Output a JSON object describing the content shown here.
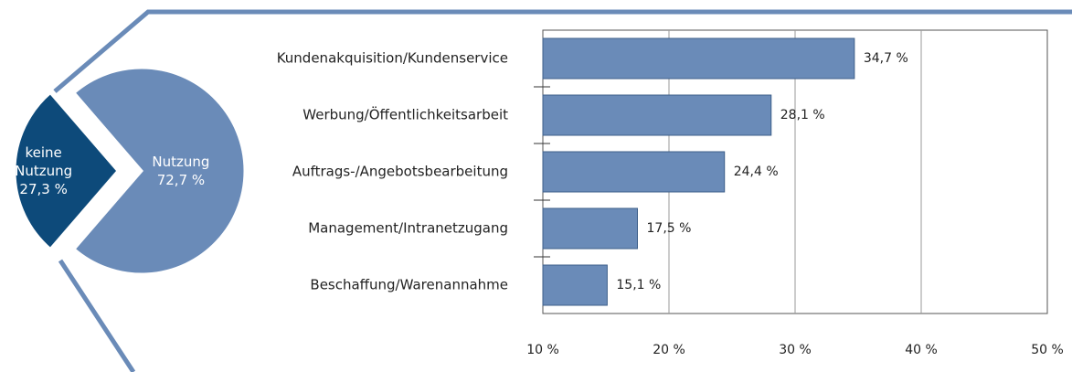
{
  "chart_data": [
    {
      "type": "pie",
      "categories": [
        "keine Nutzung",
        "Nutzung"
      ],
      "values": [
        27.3,
        72.7
      ],
      "value_labels": [
        "27,3 %",
        "72,7 %"
      ],
      "colors": [
        "#0d4a7a",
        "#6a8bb8"
      ]
    },
    {
      "type": "barh",
      "categories": [
        "Kundenakquisition/Kundenservice",
        "Werbung/Öffentlichkeitsarbeit",
        "Auftrags-/Angebotsbearbeitung",
        "Management/Intranetzugang",
        "Beschaffung/Warenannahme"
      ],
      "values": [
        34.7,
        28.1,
        24.4,
        17.5,
        15.1
      ],
      "value_labels": [
        "34,7 %",
        "28,1 %",
        "24,4 %",
        "17,5 %",
        "15,1 %"
      ],
      "color": "#6a8bb8",
      "xlim": [
        10,
        50
      ],
      "xticks": [
        {
          "value": 10,
          "label": "10 %"
        },
        {
          "value": 20,
          "label": "20 %"
        },
        {
          "value": 30,
          "label": "30 %"
        },
        {
          "value": 40,
          "label": "40 %"
        },
        {
          "value": 50,
          "label": "50 %"
        }
      ],
      "grid": true
    }
  ]
}
